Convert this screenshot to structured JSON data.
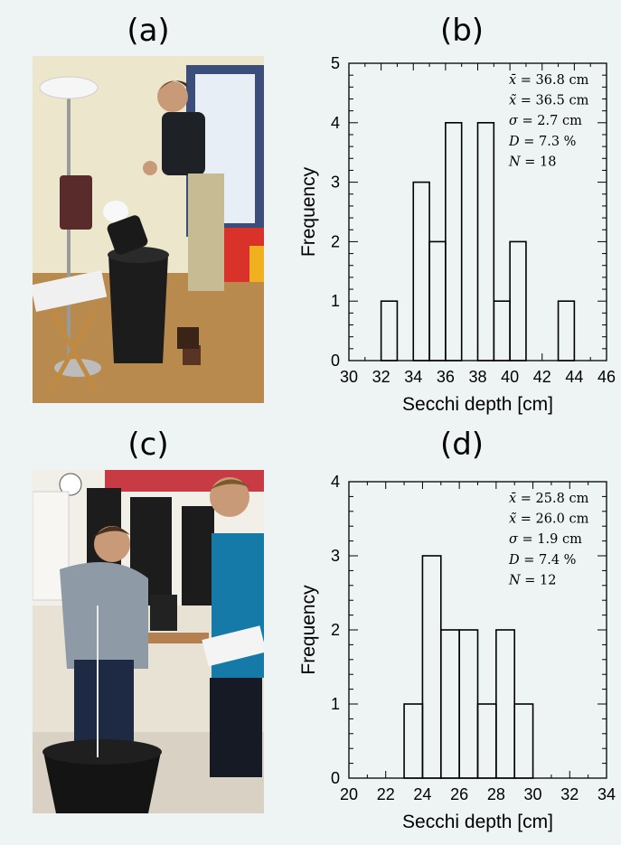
{
  "panels": {
    "a": "(a)",
    "b": "(b)",
    "c": "(c)",
    "d": "(d)"
  },
  "chart_data": [
    {
      "type": "bar",
      "panel": "(b)",
      "xlabel": "Secchi depth [cm]",
      "ylabel": "Frequency",
      "bin_edges": [
        32,
        33,
        34,
        35,
        36,
        37,
        38,
        39,
        40,
        41,
        42,
        43,
        44
      ],
      "values": [
        1,
        0,
        3,
        2,
        4,
        0,
        4,
        1,
        2,
        0,
        0,
        1
      ],
      "xlim": [
        30,
        46
      ],
      "ylim": [
        0,
        5
      ],
      "xticks": [
        "30",
        "32",
        "34",
        "36",
        "38",
        "40",
        "42",
        "44",
        "46"
      ],
      "yticks": [
        "0",
        "1",
        "2",
        "3",
        "4",
        "5"
      ],
      "annotations": [
        {
          "sym": "x̄",
          "rest": " = 36.8 cm"
        },
        {
          "sym": "x̃",
          "rest": " = 36.5 cm"
        },
        {
          "sym": "σ",
          "rest": " = 2.7 cm"
        },
        {
          "sym": "D",
          "rest": " = 7.3 %"
        },
        {
          "sym": "N",
          "rest": " = 18"
        }
      ]
    },
    {
      "type": "bar",
      "panel": "(d)",
      "xlabel": "Secchi depth [cm]",
      "ylabel": "Frequency",
      "bin_edges": [
        23,
        24,
        25,
        26,
        27,
        28,
        29,
        30
      ],
      "values": [
        1,
        3,
        2,
        2,
        1,
        2,
        1
      ],
      "xlim": [
        20,
        34
      ],
      "ylim": [
        0,
        4
      ],
      "xticks": [
        "20",
        "22",
        "24",
        "26",
        "28",
        "30",
        "32",
        "34"
      ],
      "yticks": [
        "0",
        "1",
        "2",
        "3",
        "4"
      ],
      "annotations": [
        {
          "sym": "x̄",
          "rest": " = 25.8 cm"
        },
        {
          "sym": "x̃",
          "rest": " = 26.0 cm"
        },
        {
          "sym": "σ",
          "rest": " = 1.9 cm"
        },
        {
          "sym": "D",
          "rest": " = 7.4 %"
        },
        {
          "sym": "N",
          "rest": " = 12"
        }
      ]
    }
  ]
}
